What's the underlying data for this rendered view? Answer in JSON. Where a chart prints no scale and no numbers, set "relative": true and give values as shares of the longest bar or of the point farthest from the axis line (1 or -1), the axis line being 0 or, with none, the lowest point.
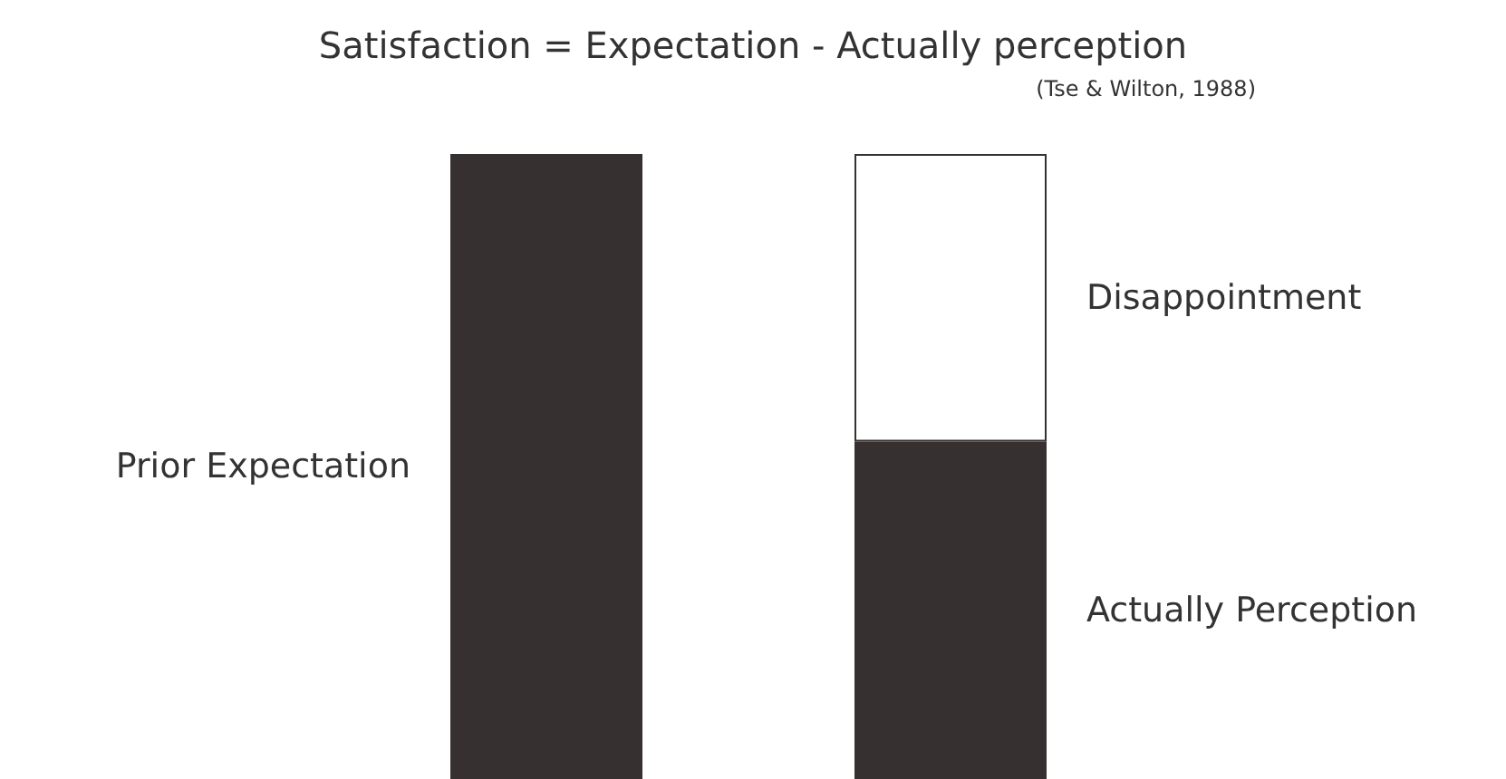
{
  "chart_data": {
    "type": "bar",
    "title": "Satisfaction = Expectation - Actually perception",
    "subtitle": "(Tse & Wilton, 1988)",
    "categories": [
      null,
      null
    ],
    "stacked": true,
    "relative": true,
    "series": [
      {
        "name": "Prior Expectation",
        "color": "#363130",
        "values": [
          1,
          null
        ]
      },
      {
        "name": "Actually Perception",
        "color": "#363130",
        "values": [
          null,
          0.54
        ]
      },
      {
        "name": "Disappointment",
        "color": "#ffffff",
        "values": [
          null,
          0.46
        ]
      }
    ]
  }
}
